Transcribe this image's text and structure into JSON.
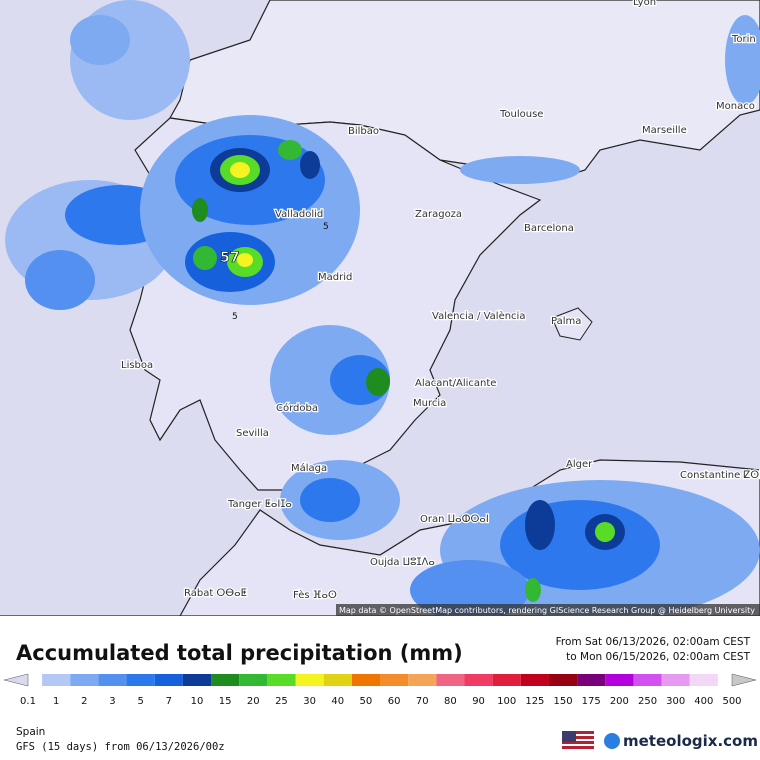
{
  "map": {
    "cities": [
      "Lyon",
      "Torin",
      "Monaco",
      "Toulouse",
      "Marseille",
      "Bilbao",
      "Valladolid",
      "Zaragoza",
      "Barcelona",
      "Madrid",
      "Valencia / València",
      "Palma",
      "Lisboa",
      "Alacant/Alicante",
      "Murcia",
      "Córdoba",
      "Sevilla",
      "Málaga",
      "Alger",
      "Constantine ⵇⵙⵏⵟⵉⵏⴰ",
      "Tanger ⵟⴰⵏⵊⴰ",
      "Oran ⵡⴰⵀⵔⴰⵏ",
      "Oujda ⵡⵓⵊⴷⴰ",
      "Rabat ⵔⴱⴰⵟ",
      "Fès ⴼⴰⵙ"
    ],
    "max_label": "57",
    "contour_labels": [
      "5",
      "5"
    ],
    "attribution": "Map data © OpenStreetMap contributors, rendering GIScience Research Group @ Heidelberg University"
  },
  "legend": {
    "title": "Accumulated total precipitation (mm)",
    "period_from": "From Sat 06/13/2026, 02:00am CEST",
    "period_to": "to Mon 06/15/2026, 02:00am CEST",
    "levels": [
      {
        "value": 0.1,
        "color": "#d9d9f2"
      },
      {
        "value": 1,
        "color": "#b4c8f5"
      },
      {
        "value": 2,
        "color": "#7eaaf2"
      },
      {
        "value": 3,
        "color": "#5490f0"
      },
      {
        "value": 5,
        "color": "#2e78ee"
      },
      {
        "value": 7,
        "color": "#1660dc"
      },
      {
        "value": 10,
        "color": "#0c3c98"
      },
      {
        "value": 15,
        "color": "#1e8c1e"
      },
      {
        "value": 20,
        "color": "#32b832"
      },
      {
        "value": 25,
        "color": "#58dc28"
      },
      {
        "value": 30,
        "color": "#f4f422"
      },
      {
        "value": 40,
        "color": "#e2d214"
      },
      {
        "value": 50,
        "color": "#f07400"
      },
      {
        "value": 60,
        "color": "#f48c2c"
      },
      {
        "value": 70,
        "color": "#f4a456"
      },
      {
        "value": 80,
        "color": "#f06484"
      },
      {
        "value": 90,
        "color": "#f03c64"
      },
      {
        "value": 100,
        "color": "#e01e3c"
      },
      {
        "value": 125,
        "color": "#c0001c"
      },
      {
        "value": 150,
        "color": "#960012"
      },
      {
        "value": 175,
        "color": "#780078"
      },
      {
        "value": 200,
        "color": "#b400dc"
      },
      {
        "value": 250,
        "color": "#d250f0"
      },
      {
        "value": 300,
        "color": "#e69af2"
      },
      {
        "value": 400,
        "color": "#f2d8f6"
      },
      {
        "value": 500,
        "color": "#c8c8c8"
      }
    ]
  },
  "footer": {
    "region": "Spain",
    "model": "GFS (15 days) from  06/13/2026/00z",
    "brand": "meteologix.com"
  }
}
